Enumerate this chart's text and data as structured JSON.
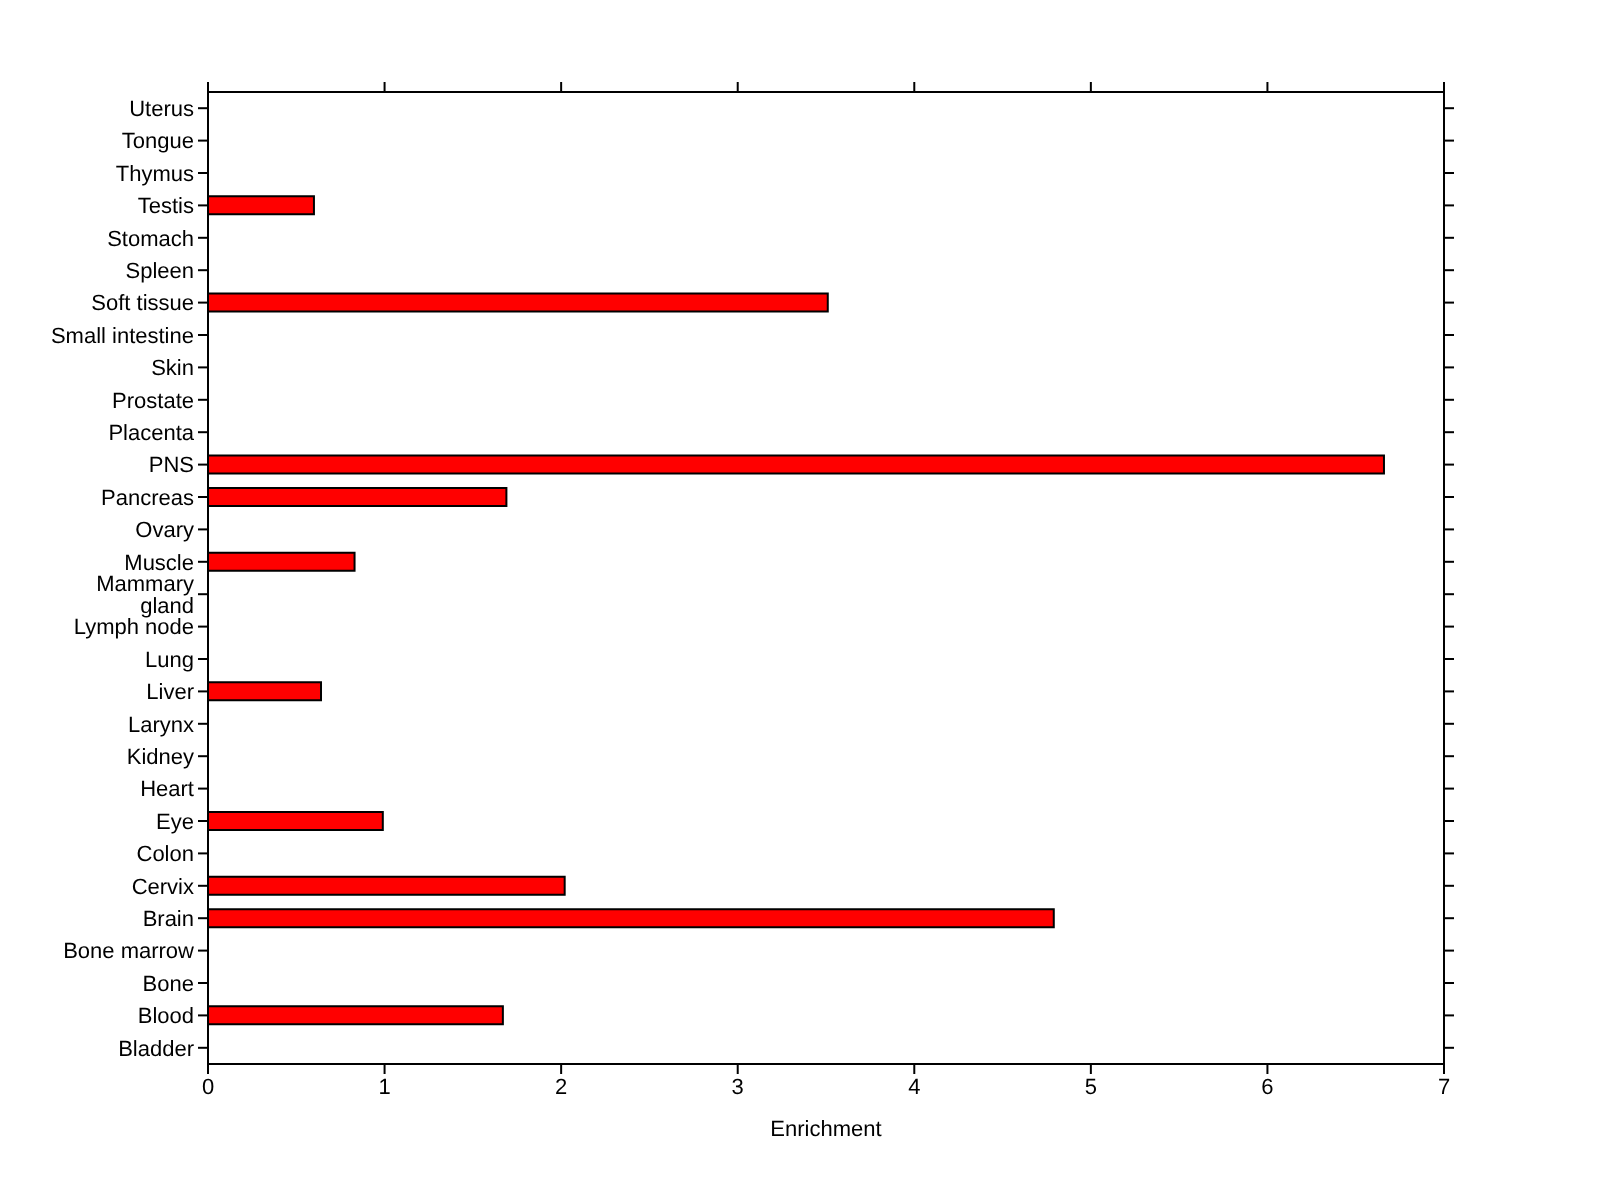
{
  "chart_data": {
    "type": "bar",
    "orientation": "horizontal",
    "xlabel": "Enrichment",
    "categories": [
      "Uterus",
      "Tongue",
      "Thymus",
      "Testis",
      "Stomach",
      "Spleen",
      "Soft tissue",
      "Small intestine",
      "Skin",
      "Prostate",
      "Placenta",
      "PNS",
      "Pancreas",
      "Ovary",
      "Muscle",
      "Mammary gland",
      "Lymph node",
      "Lung",
      "Liver",
      "Larynx",
      "Kidney",
      "Heart",
      "Eye",
      "Colon",
      "Cervix",
      "Brain",
      "Bone marrow",
      "Bone",
      "Blood",
      "Bladder"
    ],
    "values": [
      0,
      0,
      0,
      0.6,
      0,
      0,
      3.51,
      0,
      0,
      0,
      0,
      6.66,
      1.69,
      0,
      0.83,
      0,
      0,
      0,
      0.64,
      0,
      0,
      0,
      0.99,
      0,
      2.02,
      4.79,
      0,
      0,
      1.67,
      0
    ],
    "color": "#ff0000",
    "xlim": [
      0,
      7
    ],
    "xticks": [
      0,
      1,
      2,
      3,
      4,
      5,
      6,
      7
    ]
  }
}
